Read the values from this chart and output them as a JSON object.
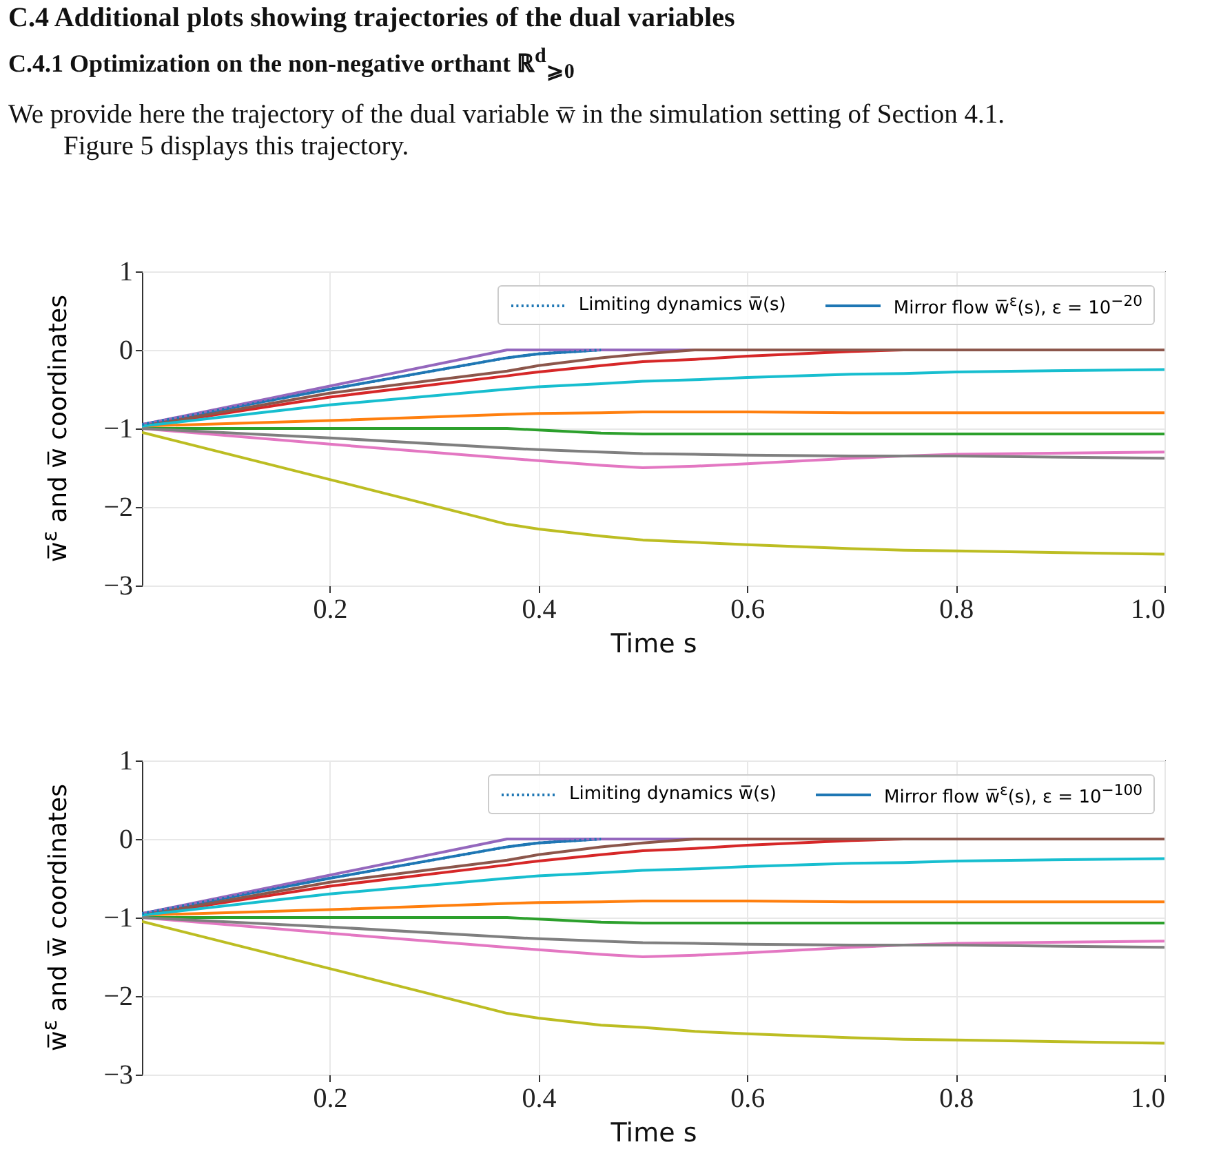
{
  "chart_data": [
    {
      "type": "line",
      "title": "C.4 Additional plots showing trajectories of the dual variables",
      "subtitle": "C.4.1 Optimization on the non-negative orthant ℝ$^{d}$$_{⩾0}$",
      "annotations": [
        "We provide here the trajectory of the dual variable w̅ in the simulation setting of Section 4.1. Figure 5 displays this trajectory."
      ],
      "xlabel": "Time s",
      "ylabel": "w̅$^{ε}$ and w̅ coordinates",
      "xlim": [
        0.02,
        1.0
      ],
      "xticks": [
        0.2,
        0.4,
        0.6,
        0.8,
        {
          "value": 1,
          "label": "1.0"
        }
      ],
      "ylim": [
        -3,
        1
      ],
      "yticks": [
        -3,
        -2,
        -1,
        0,
        1
      ],
      "grid": true,
      "legend": "top right",
      "x": [
        0.02,
        0.2,
        0.37,
        0.4,
        0.46,
        0.5,
        0.55,
        0.6,
        0.7,
        0.75,
        0.8,
        1.0
      ],
      "series": [
        {
          "name": "Mirror flow w̅$^{ε}$(s), ε = 10$^{−20}$",
          "color": "#1f77b4",
          "line_style": "solid",
          "values": [
            -0.95,
            -0.5,
            -0.1,
            -0.05,
            0,
            null,
            null,
            null,
            null,
            null,
            null,
            null
          ]
        },
        {
          "color": "#ff7f0e",
          "line_style": "solid",
          "values": [
            -0.97,
            -0.9,
            -0.82,
            -0.81,
            -0.8,
            -0.79,
            -0.79,
            -0.79,
            -0.8,
            -0.8,
            -0.8,
            -0.8
          ]
        },
        {
          "color": "#2ca02c",
          "line_style": "solid",
          "values": [
            -1,
            -1,
            -1,
            -1.02,
            -1.06,
            -1.07,
            -1.07,
            -1.07,
            -1.07,
            -1.07,
            -1.07,
            -1.07
          ]
        },
        {
          "color": "#d62728",
          "line_style": "solid",
          "values": [
            -0.97,
            -0.6,
            -0.33,
            -0.28,
            -0.2,
            -0.15,
            -0.12,
            -0.08,
            -0.02,
            0,
            0,
            0
          ]
        },
        {
          "color": "#9467bd",
          "line_style": "solid",
          "values": [
            -0.95,
            -0.46,
            0,
            0,
            0,
            0,
            0,
            0,
            null,
            null,
            null,
            null
          ]
        },
        {
          "color": "#8c564b",
          "line_style": "solid",
          "values": [
            -0.97,
            -0.55,
            -0.27,
            -0.2,
            -0.1,
            -0.05,
            0,
            0,
            0,
            0,
            0,
            0
          ]
        },
        {
          "color": "#e377c2",
          "line_style": "solid",
          "values": [
            -1,
            -1.2,
            -1.38,
            -1.41,
            -1.47,
            -1.5,
            -1.48,
            -1.45,
            -1.38,
            -1.35,
            -1.33,
            -1.3
          ]
        },
        {
          "color": "#7f7f7f",
          "line_style": "solid",
          "values": [
            -1,
            -1.12,
            -1.25,
            -1.27,
            -1.3,
            -1.32,
            -1.33,
            -1.34,
            -1.35,
            -1.35,
            -1.35,
            -1.38
          ]
        },
        {
          "color": "#bcbd22",
          "line_style": "solid",
          "values": [
            -1.05,
            -1.65,
            -2.22,
            -2.28,
            -2.37,
            -2.42,
            -2.45,
            -2.48,
            -2.53,
            -2.55,
            -2.56,
            -2.6
          ]
        },
        {
          "color": "#17becf",
          "line_style": "solid",
          "values": [
            -0.97,
            -0.7,
            -0.5,
            -0.47,
            -0.43,
            -0.4,
            -0.38,
            -0.35,
            -0.31,
            -0.3,
            -0.28,
            -0.25
          ]
        },
        {
          "name": "Limiting dynamics w̅(s)",
          "color": "#1f77b4",
          "line_style": "dotted",
          "values": [
            -0.95,
            -0.5,
            -0.1,
            -0.05,
            0,
            null,
            null,
            null,
            null,
            null,
            null,
            null
          ]
        }
      ]
    },
    {
      "type": "line",
      "xlabel": "Time s",
      "ylabel": "w̅$^{ε}$ and w̅ coordinates",
      "xlim": [
        0.02,
        1.0
      ],
      "xticks": [
        0.2,
        0.4,
        0.6,
        0.8,
        {
          "value": 1,
          "label": "1.0"
        }
      ],
      "ylim": [
        -3,
        1
      ],
      "yticks": [
        -3,
        -2,
        -1,
        0,
        1
      ],
      "grid": true,
      "legend": "top right",
      "x": [
        0.02,
        0.2,
        0.37,
        0.4,
        0.46,
        0.5,
        0.55,
        0.6,
        0.7,
        0.75,
        0.8,
        1.0
      ],
      "series": [
        {
          "name": "Mirror flow w̅$^{ε}$(s), ε = 10$^{−100}$",
          "color": "#1f77b4",
          "line_style": "solid",
          "values": [
            -0.95,
            -0.5,
            -0.1,
            -0.05,
            0,
            null,
            null,
            null,
            null,
            null,
            null,
            null
          ]
        },
        {
          "color": "#ff7f0e",
          "line_style": "solid",
          "values": [
            -0.97,
            -0.9,
            -0.82,
            -0.81,
            -0.8,
            -0.79,
            -0.79,
            -0.79,
            -0.8,
            -0.8,
            -0.8,
            -0.8
          ]
        },
        {
          "color": "#2ca02c",
          "line_style": "solid",
          "values": [
            -1,
            -1,
            -1,
            -1.02,
            -1.06,
            -1.07,
            -1.07,
            -1.07,
            -1.07,
            -1.07,
            -1.07,
            -1.07
          ]
        },
        {
          "color": "#d62728",
          "line_style": "solid",
          "values": [
            -0.97,
            -0.6,
            -0.33,
            -0.28,
            -0.2,
            -0.15,
            -0.12,
            -0.08,
            -0.02,
            0,
            0,
            0
          ]
        },
        {
          "color": "#9467bd",
          "line_style": "solid",
          "values": [
            -0.95,
            -0.46,
            0,
            0,
            0,
            0,
            0,
            0,
            null,
            null,
            null,
            null
          ]
        },
        {
          "color": "#8c564b",
          "line_style": "solid",
          "values": [
            -0.97,
            -0.55,
            -0.27,
            -0.2,
            -0.1,
            -0.05,
            0,
            0,
            0,
            0,
            0,
            0
          ]
        },
        {
          "color": "#e377c2",
          "line_style": "solid",
          "values": [
            -1,
            -1.2,
            -1.38,
            -1.41,
            -1.47,
            -1.5,
            -1.48,
            -1.45,
            -1.38,
            -1.35,
            -1.33,
            -1.3
          ]
        },
        {
          "color": "#7f7f7f",
          "line_style": "solid",
          "values": [
            -1,
            -1.12,
            -1.25,
            -1.27,
            -1.3,
            -1.32,
            -1.33,
            -1.34,
            -1.35,
            -1.35,
            -1.35,
            -1.38
          ]
        },
        {
          "color": "#bcbd22",
          "line_style": "solid",
          "values": [
            -1.05,
            -1.65,
            -2.22,
            -2.28,
            -2.37,
            -2.4,
            -2.45,
            -2.48,
            -2.53,
            -2.55,
            -2.56,
            -2.6
          ]
        },
        {
          "color": "#17becf",
          "line_style": "solid",
          "values": [
            -0.97,
            -0.7,
            -0.5,
            -0.47,
            -0.43,
            -0.4,
            -0.38,
            -0.35,
            -0.31,
            -0.3,
            -0.28,
            -0.25
          ]
        },
        {
          "name": "Limiting dynamics w̅(s)",
          "color": "#1f77b4",
          "line_style": "dotted",
          "values": [
            -0.95,
            -0.5,
            -0.1,
            -0.05,
            0,
            null,
            null,
            null,
            null,
            null,
            null,
            null
          ]
        }
      ]
    }
  ]
}
